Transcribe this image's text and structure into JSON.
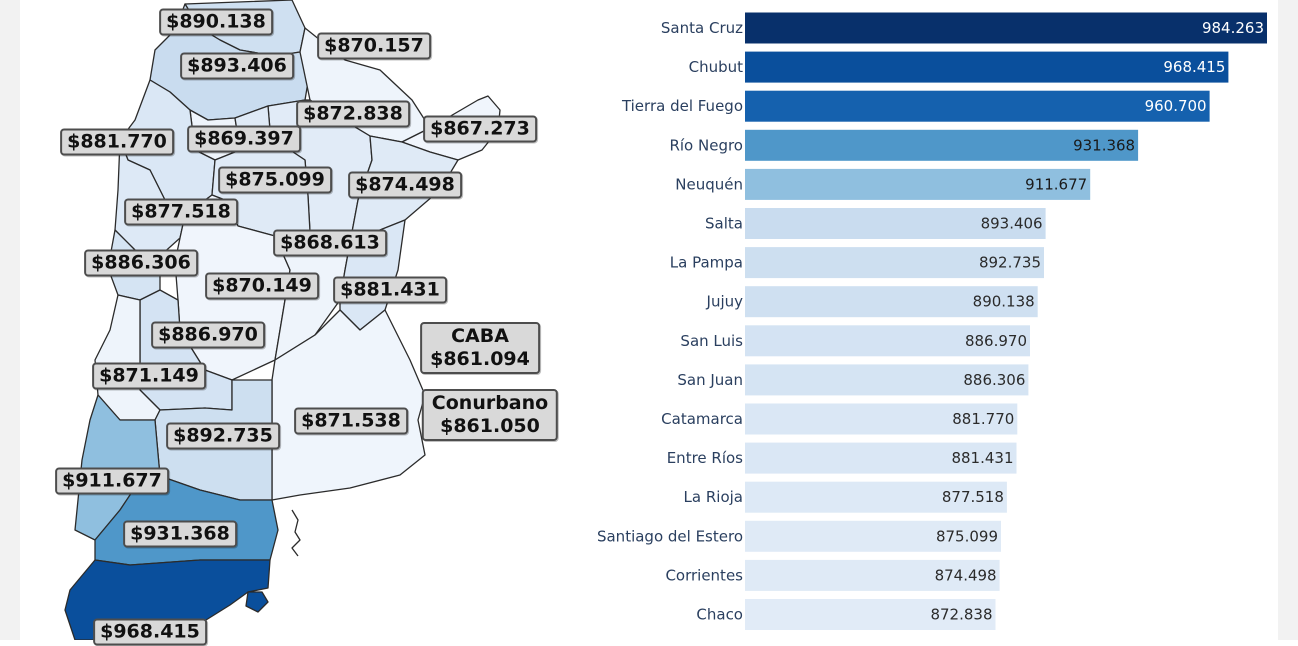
{
  "chart_data": [
    {
      "type": "map",
      "labels": [
        {
          "value": "$890.138"
        },
        {
          "value": "$870.157"
        },
        {
          "value": "$893.406"
        },
        {
          "value": "$872.838"
        },
        {
          "value": "$867.273"
        },
        {
          "value": "$881.770"
        },
        {
          "value": "$869.397"
        },
        {
          "value": "$875.099"
        },
        {
          "value": "$874.498"
        },
        {
          "value": "$877.518"
        },
        {
          "value": "$868.613"
        },
        {
          "value": "$886.306"
        },
        {
          "value": "$870.149"
        },
        {
          "value": "$881.431"
        },
        {
          "value": "$886.970"
        },
        {
          "value": "$871.149"
        },
        {
          "value": "$871.538"
        },
        {
          "value": "$892.735"
        },
        {
          "value": "$911.677"
        },
        {
          "value": "$931.368"
        },
        {
          "value": "$968.415"
        }
      ],
      "callouts": [
        {
          "name": "CABA",
          "value": "$861.094"
        },
        {
          "name": "Conurbano",
          "value": "$861.050"
        }
      ]
    },
    {
      "type": "bar",
      "orientation": "horizontal",
      "categories": [
        "Santa Cruz",
        "Chubut",
        "Tierra del Fuego",
        "Río Negro",
        "Neuquén",
        "Salta",
        "La Pampa",
        "Jujuy",
        "San Luis",
        "San Juan",
        "Catamarca",
        "Entre Ríos",
        "La Rioja",
        "Santiago del Estero",
        "Corrientes",
        "Chaco"
      ],
      "values": [
        984263,
        968415,
        960700,
        931368,
        911677,
        893406,
        892735,
        890138,
        886970,
        886306,
        881770,
        881431,
        877518,
        875099,
        874498,
        872838
      ],
      "value_labels": [
        "984.263",
        "968.415",
        "960.700",
        "931.368",
        "911.677",
        "893.406",
        "892.735",
        "890.138",
        "886.970",
        "886.306",
        "881.770",
        "881.431",
        "877.518",
        "875.099",
        "874.498",
        "872.838"
      ],
      "colors": [
        "#08306b",
        "#0a4f9c",
        "#1561ae",
        "#4f97c9",
        "#8fbfdf",
        "#c9dcef",
        "#cddff0",
        "#cfe0f1",
        "#d4e3f3",
        "#d5e4f3",
        "#dae7f5",
        "#dae7f5",
        "#dde9f6",
        "#dfeaf6",
        "#dfeaf6",
        "#e1ebf7"
      ]
    }
  ]
}
